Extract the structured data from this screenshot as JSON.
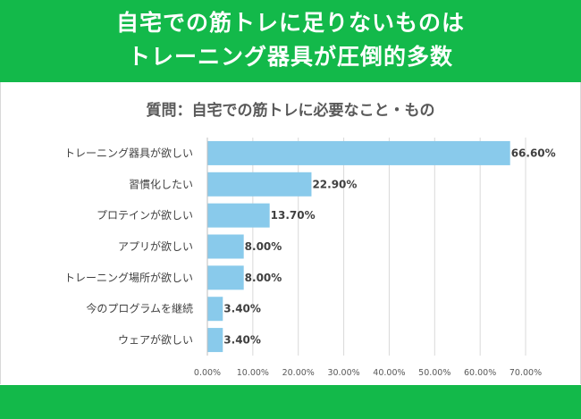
{
  "banner": {
    "line1": "自宅での筋トレに足りないものは",
    "line2": "トレーニング器具が圧倒的多数"
  },
  "colors": {
    "banner": "#13b94a",
    "bar": "#89caeb",
    "grid": "#d9d9d9"
  },
  "chart_data": {
    "type": "bar",
    "orientation": "horizontal",
    "title": "質問：自宅での筋トレに必要なこと・もの",
    "categories": [
      "トレーニング器具が欲しい",
      "習慣化したい",
      "プロテインが欲しい",
      "アプリが欲しい",
      "トレーニング場所が欲しい",
      "今のプログラムを継続",
      "ウェアが欲しい"
    ],
    "values": [
      66.6,
      22.9,
      13.7,
      8.0,
      8.0,
      3.4,
      3.4
    ],
    "value_labels": [
      "66.60%",
      "22.90%",
      "13.70%",
      "8.00%",
      "8.00%",
      "3.40%",
      "3.40%"
    ],
    "xlim": [
      0,
      70
    ],
    "xticks": [
      0,
      10,
      20,
      30,
      40,
      50,
      60,
      70
    ],
    "xtick_labels": [
      "0.00%",
      "10.00%",
      "20.00%",
      "30.00%",
      "40.00%",
      "50.00%",
      "60.00%",
      "70.00%"
    ],
    "grid": true,
    "legend": "none"
  }
}
